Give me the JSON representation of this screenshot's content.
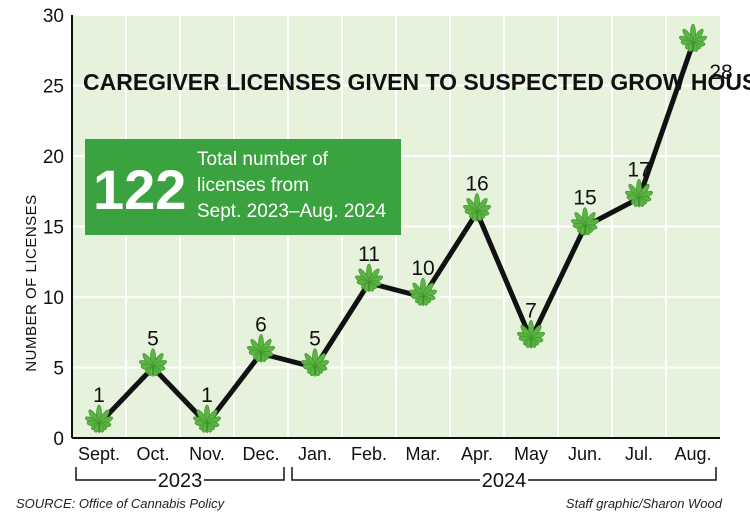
{
  "chart_data": {
    "type": "line",
    "title": "CAREGIVER LICENSES GIVEN TO SUSPECTED GROW HOUSES",
    "ylabel": "NUMBER OF LICENSES",
    "categories": [
      "Sept.",
      "Oct.",
      "Nov.",
      "Dec.",
      "Jan.",
      "Feb.",
      "Mar.",
      "Apr.",
      "May",
      "Jun.",
      "Jul.",
      "Aug."
    ],
    "values": [
      1,
      5,
      1,
      6,
      5,
      11,
      10,
      16,
      7,
      15,
      17,
      28
    ],
    "ylim": [
      0,
      30
    ],
    "yticks": [
      0,
      5,
      10,
      15,
      20,
      25,
      30
    ],
    "grid": true,
    "year_groups": [
      {
        "label": "2023",
        "from": 0,
        "to": 3
      },
      {
        "label": "2024",
        "from": 4,
        "to": 11
      }
    ],
    "marker": "cannabis-leaf",
    "colors": {
      "line": "#111111",
      "plot_bg": "#e6f2dc",
      "grid": "#ffffff",
      "leaf": "#5bb443",
      "callout_bg": "#3aa33f"
    }
  },
  "callout": {
    "number": "122",
    "lines": [
      "Total number of",
      "licenses from",
      "Sept. 2023–Aug. 2024"
    ]
  },
  "footer": {
    "source": "SOURCE: Office of Cannabis Policy",
    "credit": "Staff graphic/Sharon Wood"
  }
}
